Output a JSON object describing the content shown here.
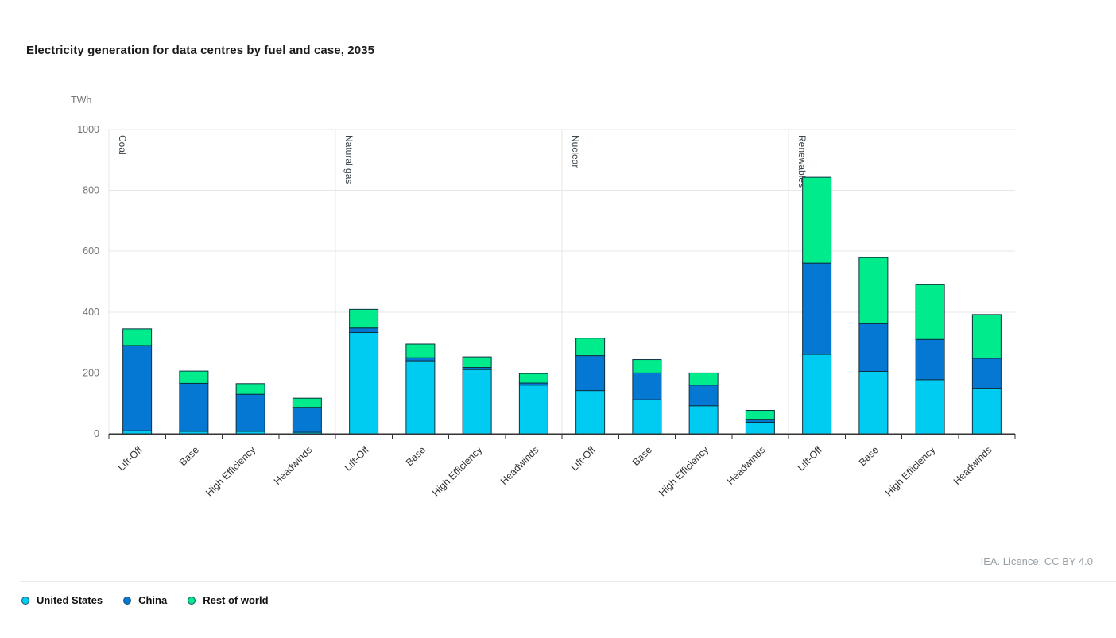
{
  "title": "Electricity generation for data centres by fuel and case, 2035",
  "unit_label": "TWh",
  "attribution": "IEA. Licence: CC BY 4.0",
  "colors": {
    "united_states": "#00CCF2",
    "china": "#0478D2",
    "rest_of_world": "#00EB8C",
    "bar_border": "#10303F",
    "gridline": "#e7e7e7",
    "axis_line": "#333333",
    "tick_label": "#757575",
    "group_label": "#38434a",
    "case_label": "#333333"
  },
  "legend": {
    "items": [
      {
        "label": "United States",
        "color": "#00CCF2"
      },
      {
        "label": "China",
        "color": "#0478D2"
      },
      {
        "label": "Rest of world",
        "color": "#00EB8C"
      }
    ]
  },
  "chart_data": {
    "type": "bar",
    "stacked": true,
    "title": "Electricity generation for data centres by fuel and case, 2035",
    "ylabel": "TWh",
    "ylim": [
      0,
      1000
    ],
    "yticks": [
      0,
      200,
      400,
      600,
      800,
      1000
    ],
    "grid": true,
    "legend_position": "bottom-left",
    "groups": [
      "Coal",
      "Natural gas",
      "Nuclear",
      "Renewables"
    ],
    "categories": [
      "Lift-Off",
      "Base",
      "High Efficiency",
      "Headwinds"
    ],
    "series": [
      {
        "name": "United States",
        "color": "#00CCF2",
        "values": [
          [
            10,
            8,
            8,
            5
          ],
          [
            333,
            240,
            211,
            160
          ],
          [
            142,
            112,
            92,
            38
          ],
          [
            261,
            205,
            178,
            150
          ]
        ]
      },
      {
        "name": "China",
        "color": "#0478D2",
        "values": [
          [
            280,
            158,
            122,
            82
          ],
          [
            15,
            10,
            7,
            7
          ],
          [
            115,
            88,
            68,
            10
          ],
          [
            300,
            157,
            132,
            98
          ]
        ]
      },
      {
        "name": "Rest of world",
        "color": "#00EB8C",
        "values": [
          [
            55,
            40,
            35,
            30
          ],
          [
            61,
            45,
            35,
            31
          ],
          [
            57,
            44,
            40,
            29
          ],
          [
            282,
            217,
            180,
            144
          ]
        ]
      }
    ]
  }
}
